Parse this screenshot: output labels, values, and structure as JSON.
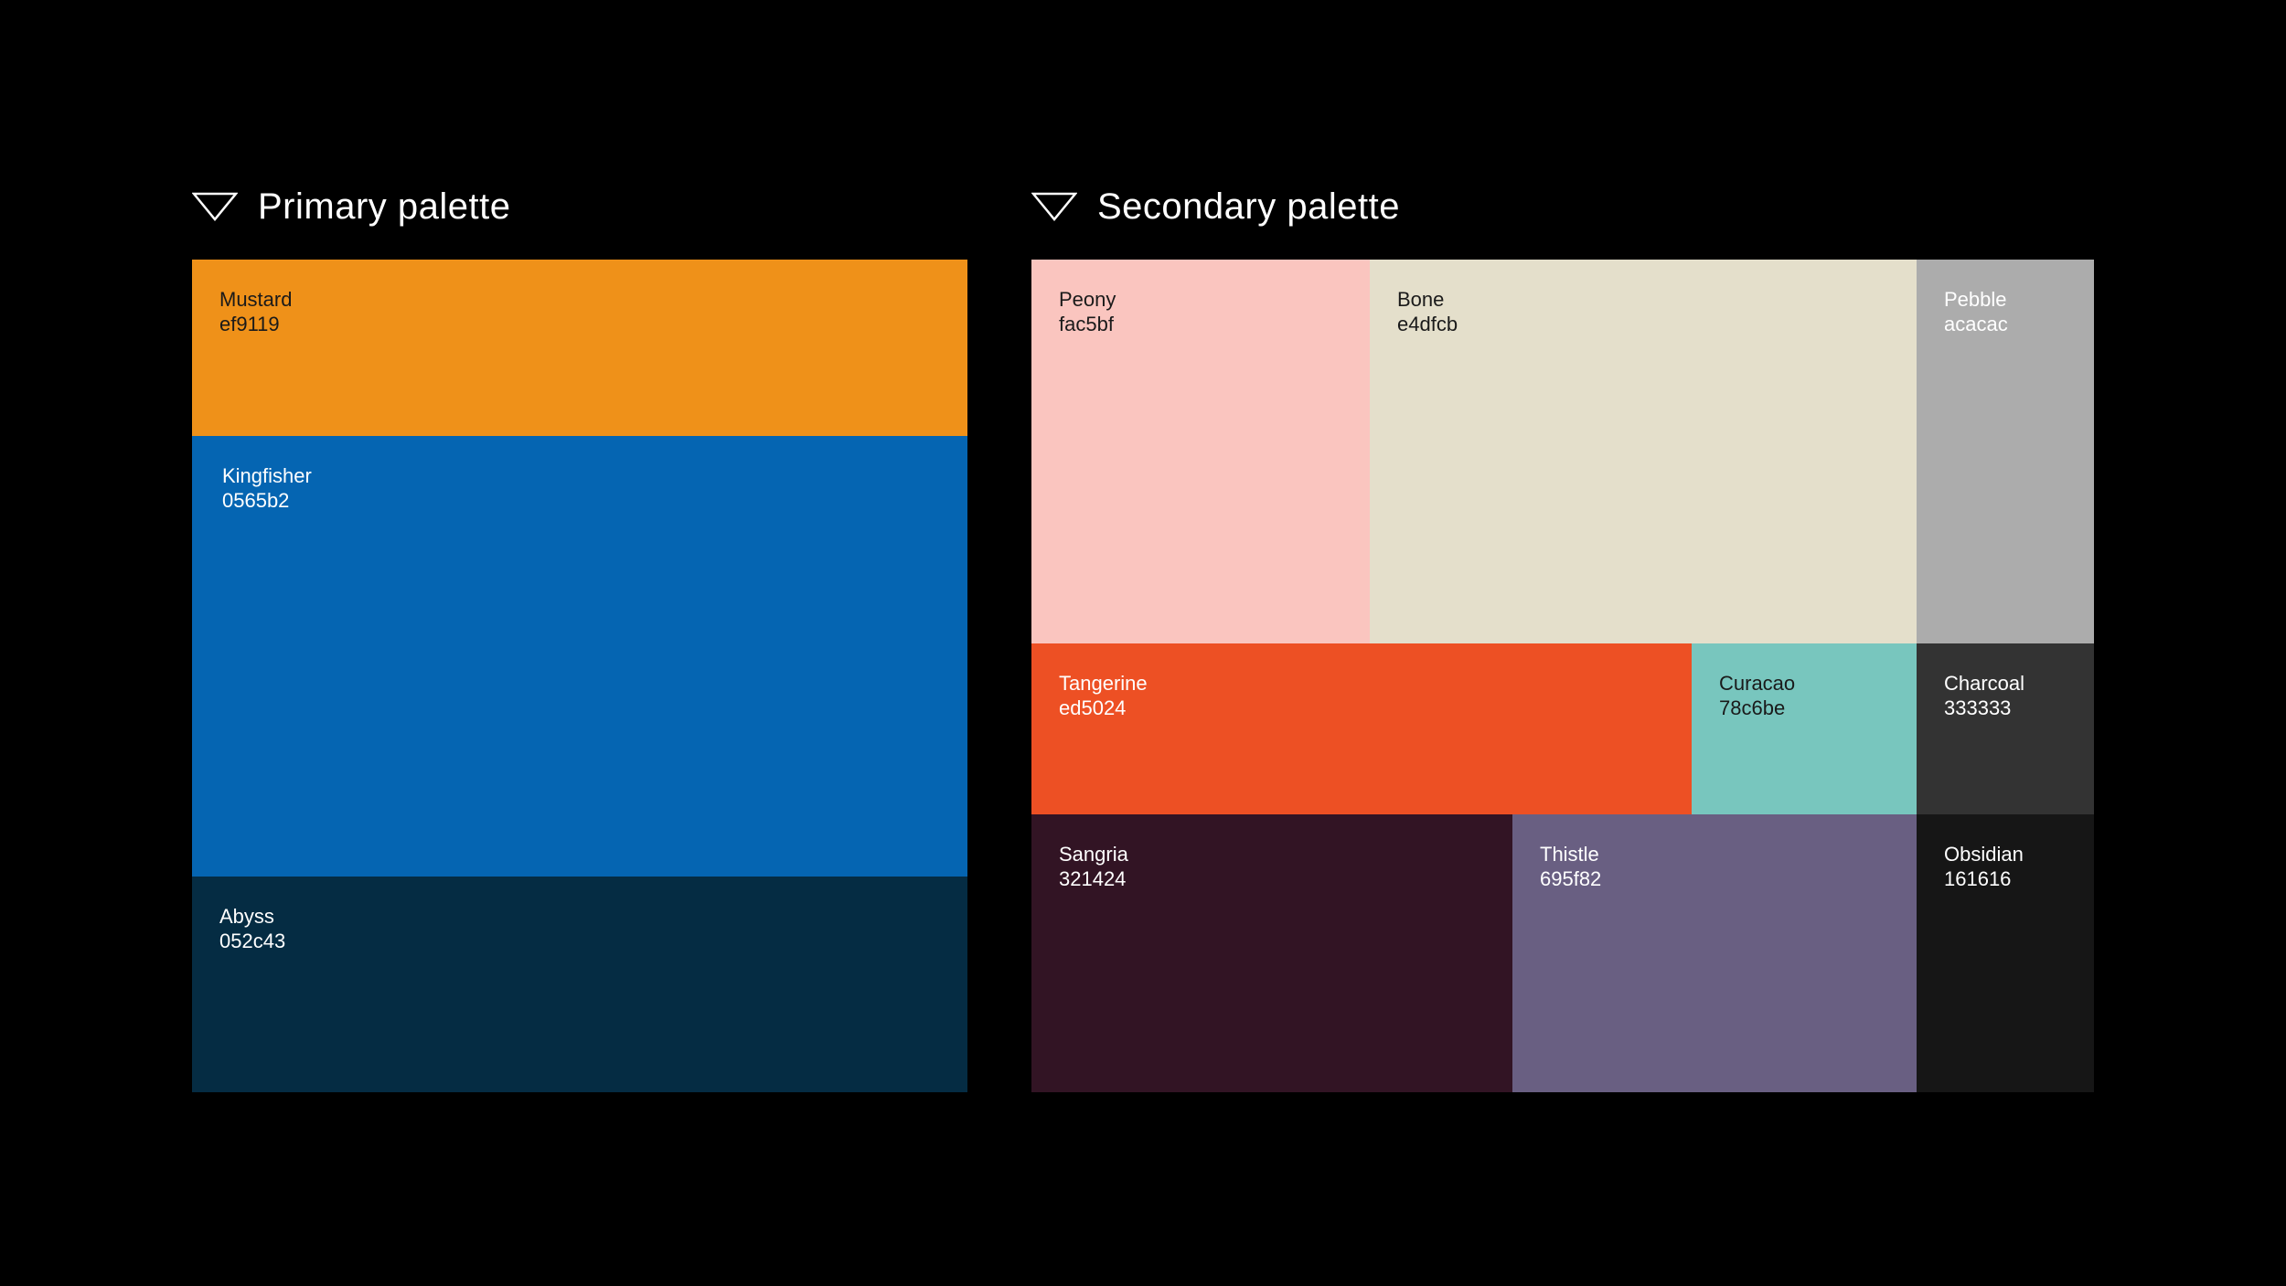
{
  "primary": {
    "title": "Primary palette",
    "swatches": [
      {
        "name": "Mustard",
        "hex": "ef9119",
        "color": "#ef9119"
      },
      {
        "name": "Kingfisher",
        "hex": "0565b2",
        "color": "#0565b2"
      },
      {
        "name": "Abyss",
        "hex": "052c43",
        "color": "#052c43"
      }
    ]
  },
  "secondary": {
    "title": "Secondary palette",
    "swatches": [
      {
        "name": "Peony",
        "hex": "fac5bf",
        "color": "#fac5bf"
      },
      {
        "name": "Bone",
        "hex": "e4dfcb",
        "color": "#e4dfcb"
      },
      {
        "name": "Pebble",
        "hex": "acacac",
        "color": "#acacac"
      },
      {
        "name": "Tangerine",
        "hex": "ed5024",
        "color": "#ed5024"
      },
      {
        "name": "Curacao",
        "hex": "78c6be",
        "color": "#78c6be"
      },
      {
        "name": "Charcoal",
        "hex": "333333",
        "color": "#333333"
      },
      {
        "name": "Sangria",
        "hex": "321424",
        "color": "#321424"
      },
      {
        "name": "Thistle",
        "hex": "695f82",
        "color": "#695f82"
      },
      {
        "name": "Obsidian",
        "hex": "161616",
        "color": "#161616"
      }
    ]
  }
}
